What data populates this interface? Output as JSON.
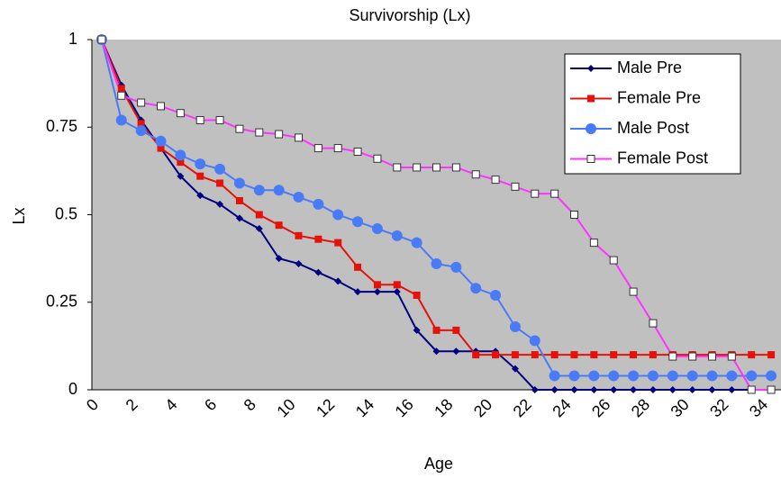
{
  "chart_data": {
    "type": "line",
    "title": "Survivorship (Lx)",
    "x_label": "Age",
    "y_label": "Lx",
    "categories": [
      "0",
      null,
      "2",
      null,
      "4",
      null,
      "6",
      null,
      "8",
      null,
      "10",
      null,
      "12",
      null,
      "14",
      null,
      "16",
      null,
      "18",
      null,
      "20",
      null,
      "22",
      null,
      "24",
      null,
      "26",
      null,
      "28",
      null,
      "30",
      null,
      "32",
      null,
      "34"
    ],
    "ylim": [
      0,
      1
    ],
    "yticks": [
      0,
      0.25,
      0.5,
      0.75,
      1
    ],
    "plot_background": "#c0c0c0",
    "legend_position": "upper right",
    "series": [
      {
        "name": "Male Pre",
        "color": "#000080",
        "marker": "diamond",
        "values": [
          1,
          0.87,
          0.77,
          0.69,
          0.61,
          0.555,
          0.53,
          0.49,
          0.46,
          0.375,
          0.36,
          0.335,
          0.31,
          0.28,
          0.28,
          0.28,
          0.17,
          0.11,
          0.11,
          0.11,
          0.11,
          0.06,
          0,
          0,
          0,
          0,
          0,
          0,
          0,
          0,
          0,
          0,
          0,
          0,
          0
        ]
      },
      {
        "name": "Female Pre",
        "color": "#e3120b",
        "marker": "square",
        "values": [
          1,
          0.86,
          0.76,
          0.69,
          0.65,
          0.61,
          0.59,
          0.54,
          0.5,
          0.47,
          0.44,
          0.43,
          0.42,
          0.35,
          0.3,
          0.3,
          0.27,
          0.17,
          0.17,
          0.1,
          0.1,
          0.1,
          0.1,
          0.1,
          0.1,
          0.1,
          0.1,
          0.1,
          0.1,
          0.1,
          0.1,
          0.1,
          0.1,
          0.1,
          0.1
        ]
      },
      {
        "name": "Male Post",
        "color": "#4a7bf7",
        "marker": "circle",
        "values": [
          1,
          0.77,
          0.74,
          0.71,
          0.67,
          0.645,
          0.63,
          0.59,
          0.57,
          0.57,
          0.55,
          0.53,
          0.5,
          0.48,
          0.46,
          0.44,
          0.42,
          0.36,
          0.35,
          0.29,
          0.27,
          0.18,
          0.14,
          0.04,
          0.04,
          0.04,
          0.04,
          0.04,
          0.04,
          0.04,
          0.04,
          0.04,
          0.04,
          0.04,
          0.04
        ]
      },
      {
        "name": "Female Post",
        "color": "#ff33ff",
        "marker": "open-square",
        "values": [
          1,
          0.84,
          0.82,
          0.81,
          0.79,
          0.77,
          0.77,
          0.745,
          0.735,
          0.73,
          0.72,
          0.69,
          0.69,
          0.68,
          0.66,
          0.635,
          0.635,
          0.635,
          0.635,
          0.615,
          0.6,
          0.58,
          0.56,
          0.56,
          0.5,
          0.42,
          0.37,
          0.28,
          0.19,
          0.095,
          0.095,
          0.095,
          0.095,
          0,
          0
        ]
      }
    ]
  }
}
